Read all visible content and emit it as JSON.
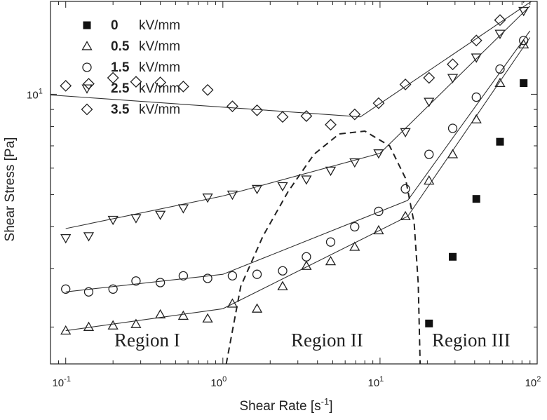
{
  "chart_data": {
    "type": "scatter",
    "title": "",
    "xlabel": "Shear Rate [s",
    "xlabel_sup": "-1",
    "xlabel_close": "]",
    "ylabel": "Shear Stress [Pa]",
    "xscale": "log",
    "yscale": "log",
    "xlim": [
      0.08,
      100
    ],
    "ylim": [
      1.55,
      19.0
    ],
    "x_ticks": [
      {
        "base": "10",
        "exp": "-1",
        "value": 0.1
      },
      {
        "base": "10",
        "exp": "0",
        "value": 1
      },
      {
        "base": "10",
        "exp": "1",
        "value": 10
      },
      {
        "base": "10",
        "exp": "2",
        "value": 100
      }
    ],
    "y_ticks": [
      {
        "base": "10",
        "exp": "1",
        "value": 10
      }
    ],
    "grid": false,
    "legend_position": "top-left",
    "unit": "kV/mm",
    "series": [
      {
        "name": "0",
        "marker": "square-filled",
        "x": [
          20.5,
          29.0,
          41.0,
          58.0,
          82.0
        ],
        "y": [
          2.05,
          3.25,
          4.85,
          7.2,
          10.8
        ]
      },
      {
        "name": "0.5",
        "marker": "triangle-up",
        "x": [
          0.1,
          0.14,
          0.2,
          0.28,
          0.4,
          0.56,
          0.8,
          1.15,
          1.65,
          2.4,
          3.4,
          4.85,
          6.9,
          9.8,
          14.5,
          20.5,
          29.0,
          41.0,
          58.0,
          82.0
        ],
        "y": [
          1.95,
          2.0,
          2.02,
          2.04,
          2.18,
          2.16,
          2.12,
          2.35,
          2.27,
          2.65,
          3.05,
          3.15,
          3.48,
          3.9,
          4.3,
          5.5,
          6.6,
          8.4,
          10.8,
          14.1
        ]
      },
      {
        "name": "1.5",
        "marker": "circle",
        "x": [
          0.1,
          0.14,
          0.2,
          0.28,
          0.4,
          0.56,
          0.8,
          1.15,
          1.65,
          2.4,
          3.4,
          4.85,
          6.9,
          9.8,
          14.5,
          20.5,
          29.0,
          41.0,
          58.0,
          82.0
        ],
        "y": [
          2.6,
          2.55,
          2.6,
          2.75,
          2.72,
          2.85,
          2.8,
          2.85,
          2.88,
          2.95,
          3.25,
          3.6,
          4.0,
          4.45,
          5.2,
          6.6,
          7.9,
          9.8,
          11.9,
          14.5
        ]
      },
      {
        "name": "2.5",
        "marker": "triangle-down",
        "x": [
          0.1,
          0.14,
          0.2,
          0.28,
          0.4,
          0.56,
          0.8,
          1.15,
          1.65,
          2.4,
          3.4,
          4.85,
          6.9,
          9.8,
          14.5,
          20.5,
          29.0,
          41.0,
          58.0,
          82.0
        ],
        "y": [
          3.7,
          3.75,
          4.2,
          4.25,
          4.35,
          4.55,
          4.9,
          5.0,
          5.2,
          5.3,
          5.55,
          5.9,
          6.25,
          6.65,
          7.7,
          9.5,
          11.2,
          12.9,
          15.2,
          17.8
        ]
      },
      {
        "name": "3.5",
        "marker": "diamond",
        "x": [
          0.1,
          0.14,
          0.2,
          0.28,
          0.4,
          0.56,
          0.8,
          1.15,
          1.65,
          2.4,
          3.4,
          4.85,
          6.9,
          9.8,
          14.5,
          20.5,
          29.0,
          41.0,
          58.0,
          82.0
        ],
        "y": [
          10.6,
          10.75,
          11.2,
          10.9,
          10.85,
          10.55,
          10.3,
          9.2,
          8.95,
          8.55,
          8.6,
          8.1,
          8.7,
          9.4,
          10.7,
          11.2,
          12.3,
          14.5,
          16.7,
          19.6
        ]
      }
    ],
    "fit_lines": [
      {
        "name": "0.5",
        "x": [
          0.1,
          1.0,
          15.0,
          90.0
        ],
        "y": [
          1.95,
          2.27,
          4.3,
          14.8
        ]
      },
      {
        "name": "1.5",
        "x": [
          0.1,
          1.0,
          15.0,
          90.0
        ],
        "y": [
          2.55,
          2.88,
          4.8,
          15.5
        ]
      },
      {
        "name": "2.5",
        "x": [
          0.1,
          1.0,
          10.0,
          90.0
        ],
        "y": [
          3.95,
          4.95,
          6.65,
          18.4
        ]
      },
      {
        "name": "3.5",
        "x": [
          0.08,
          7.5,
          95.0
        ],
        "y": [
          9.95,
          8.55,
          19.2
        ]
      }
    ],
    "region_boundary": {
      "x": [
        1.05,
        1.3,
        1.8,
        2.6,
        3.8,
        5.5,
        8.0,
        11.5,
        14.5,
        16.5,
        17.5,
        18.0
      ],
      "y": [
        1.55,
        2.65,
        3.75,
        5.1,
        6.6,
        7.6,
        7.75,
        7.0,
        5.6,
        4.1,
        2.7,
        1.55
      ]
    },
    "annotations": [
      {
        "text": "Region I",
        "x": 0.33,
        "y": 1.75
      },
      {
        "text": "Region II",
        "x": 4.6,
        "y": 1.75
      },
      {
        "text": "Region III",
        "x": 38.0,
        "y": 1.75
      }
    ]
  }
}
